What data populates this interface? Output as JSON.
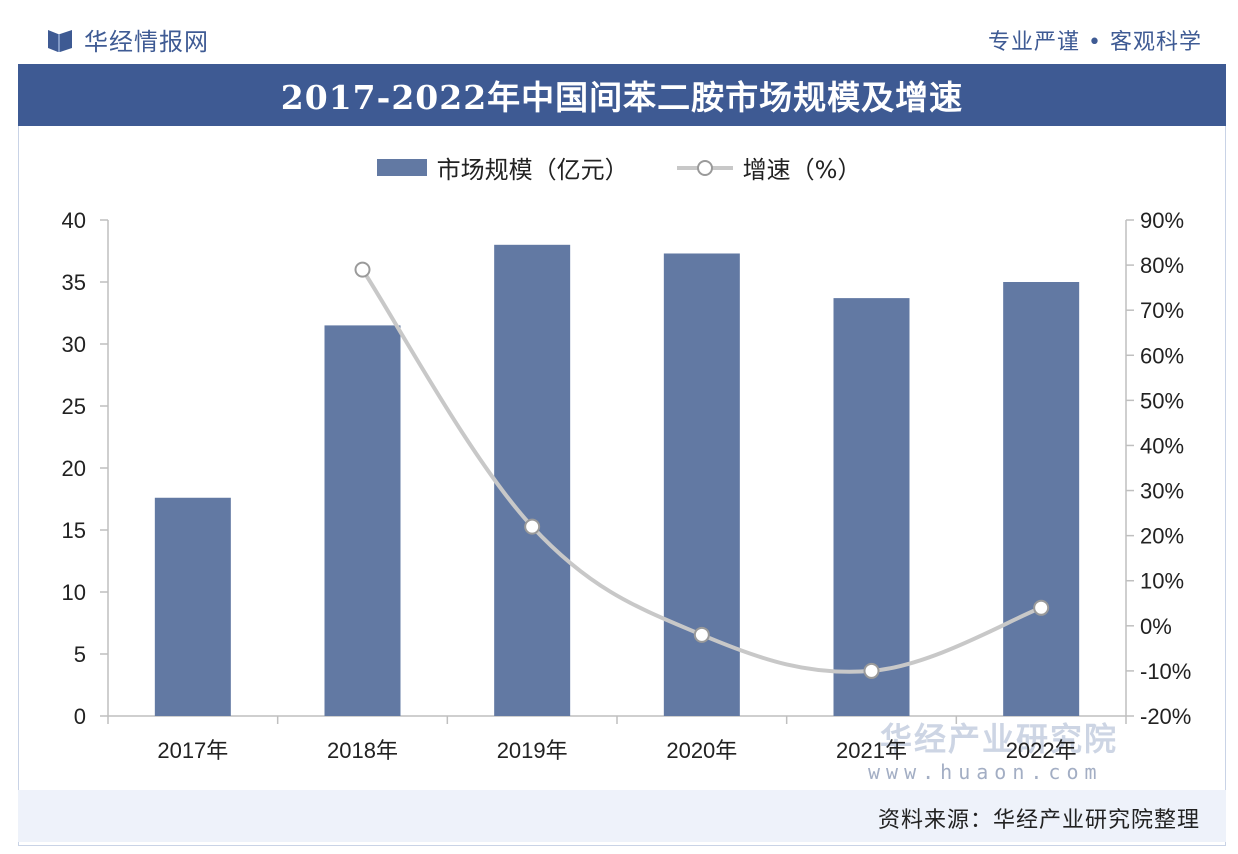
{
  "header": {
    "brand": "华经情报网",
    "slogan": "专业严谨 • 客观科学",
    "logo_icon": "huajing-logo-icon"
  },
  "banner": {
    "title": "2017-2022年中国间苯二胺市场规模及增速"
  },
  "legend": {
    "bar_label": "市场规模（亿元）",
    "line_label": "增速（%）"
  },
  "watermark": {
    "name": "华经产业研究院",
    "url": "www.huaon.com"
  },
  "footer": {
    "source": "资料来源：华经产业研究院整理"
  },
  "colors": {
    "banner": "#3e5a93",
    "bar": "#6279a3",
    "line": "#c8c8c8",
    "footer": "#eef2fa"
  },
  "chart_data": {
    "type": "bar",
    "categories": [
      "2017年",
      "2018年",
      "2019年",
      "2020年",
      "2021年",
      "2022年"
    ],
    "series": [
      {
        "name": "市场规模（亿元）",
        "type": "bar",
        "axis": "left",
        "values": [
          17.6,
          31.5,
          38.0,
          37.3,
          33.7,
          35.0
        ]
      },
      {
        "name": "增速（%）",
        "type": "line",
        "axis": "right",
        "values": [
          null,
          79,
          22,
          -2,
          -10,
          4
        ]
      }
    ],
    "y_left": {
      "min": 0,
      "max": 40,
      "ticks": [
        "0",
        "5",
        "10",
        "15",
        "20",
        "25",
        "30",
        "35",
        "40"
      ]
    },
    "y_right": {
      "min": -20,
      "max": 90,
      "ticks": [
        "-20%",
        "-10%",
        "0%",
        "10%",
        "20%",
        "30%",
        "40%",
        "50%",
        "60%",
        "70%",
        "80%",
        "90%"
      ]
    },
    "grid": false,
    "legend_position": "top"
  }
}
